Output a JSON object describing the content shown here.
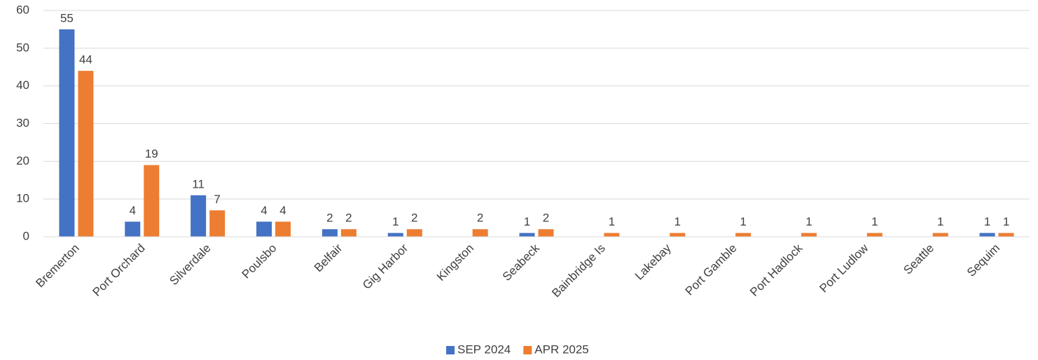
{
  "chart_data": {
    "type": "bar",
    "categories": [
      "Bremerton",
      "Port Orchard",
      "Silverdale",
      "Poulsbo",
      "Belfair",
      "Gig Harbor",
      "Kingston",
      "Seabeck",
      "Bainbridge Is",
      "Lakebay",
      "Port Gamble",
      "Port Hadlock",
      "Port Ludlow",
      "Seattle",
      "Sequim"
    ],
    "series": [
      {
        "name": "SEP 2024",
        "color": "#4472c4",
        "values": [
          55,
          4,
          11,
          4,
          2,
          1,
          null,
          1,
          null,
          null,
          null,
          null,
          null,
          null,
          1
        ]
      },
      {
        "name": "APR 2025",
        "color": "#ed7d31",
        "values": [
          44,
          19,
          7,
          4,
          2,
          2,
          2,
          2,
          1,
          1,
          1,
          1,
          1,
          1,
          1
        ]
      }
    ],
    "ylim": [
      0,
      60
    ],
    "yticks": [
      0,
      10,
      20,
      30,
      40,
      50,
      60
    ],
    "grid": true,
    "legend": "bottom"
  }
}
